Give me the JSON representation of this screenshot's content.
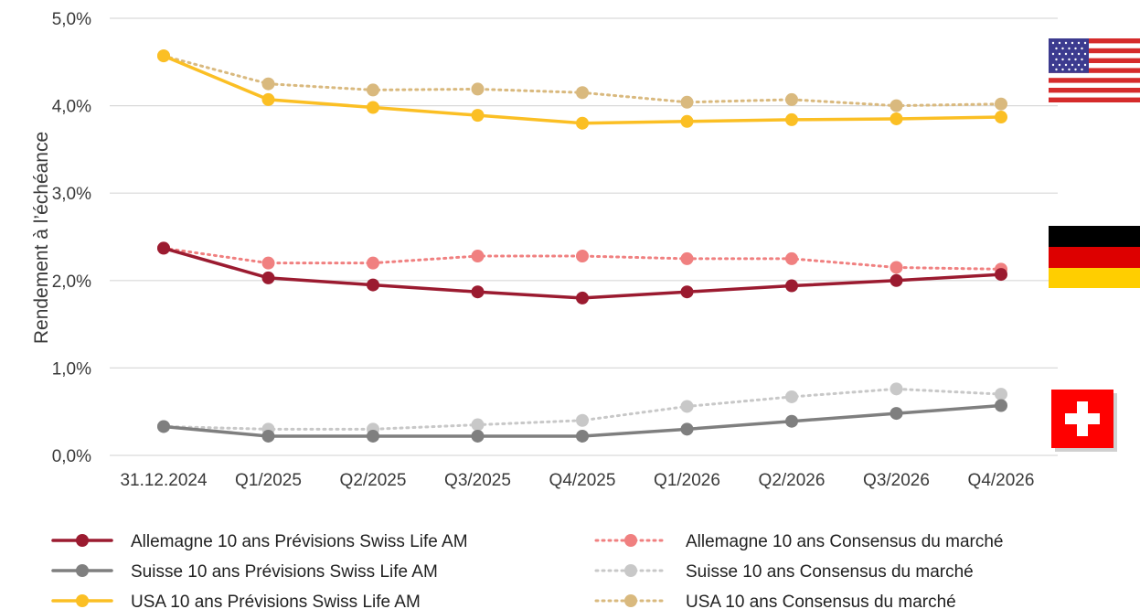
{
  "chart_data": {
    "type": "line",
    "categories": [
      "31.12.2024",
      "Q1/2025",
      "Q2/2025",
      "Q3/2025",
      "Q4/2025",
      "Q1/2026",
      "Q2/2026",
      "Q3/2026",
      "Q4/2026"
    ],
    "ylabel": "Rendement à l’échéance",
    "ylim": [
      0,
      5
    ],
    "yticks": [
      "0,0%",
      "1,0%",
      "2,0%",
      "3,0%",
      "4,0%",
      "5,0%"
    ],
    "grid": true,
    "legend_position": "bottom",
    "series": [
      {
        "name": "Allemagne 10 ans Prévisions Swiss Life AM",
        "style": "solid",
        "color": "#9b1b30",
        "values": [
          2.37,
          2.03,
          1.95,
          1.87,
          1.8,
          1.87,
          1.94,
          2.0,
          2.07
        ]
      },
      {
        "name": "Suisse 10 ans Prévisions Swiss Life AM",
        "style": "solid",
        "color": "#7f7f7f",
        "values": [
          0.33,
          0.22,
          0.22,
          0.22,
          0.22,
          0.3,
          0.39,
          0.48,
          0.57
        ]
      },
      {
        "name": "USA 10 ans Prévisions Swiss Life AM",
        "style": "solid",
        "color": "#fbbf24",
        "values": [
          4.57,
          4.07,
          3.98,
          3.89,
          3.8,
          3.82,
          3.84,
          3.85,
          3.87
        ]
      },
      {
        "name": "Allemagne 10 ans Consensus du marché",
        "style": "dotted",
        "color": "#f08080",
        "values": [
          2.37,
          2.2,
          2.2,
          2.28,
          2.28,
          2.25,
          2.25,
          2.15,
          2.13
        ]
      },
      {
        "name": "Suisse 10 ans Consensus du marché",
        "style": "dotted",
        "color": "#c8c8c8",
        "values": [
          0.33,
          0.3,
          0.3,
          0.35,
          0.4,
          0.56,
          0.67,
          0.76,
          0.7
        ]
      },
      {
        "name": "USA 10 ans Consensus du marché",
        "style": "dotted",
        "color": "#d9b97e",
        "values": [
          4.57,
          4.25,
          4.18,
          4.19,
          4.15,
          4.04,
          4.07,
          4.0,
          4.02
        ]
      }
    ],
    "flags": [
      {
        "country": "USA",
        "icon": "us-flag-icon"
      },
      {
        "country": "Allemagne",
        "icon": "germany-flag-icon"
      },
      {
        "country": "Suisse",
        "icon": "switzerland-flag-icon"
      }
    ]
  }
}
